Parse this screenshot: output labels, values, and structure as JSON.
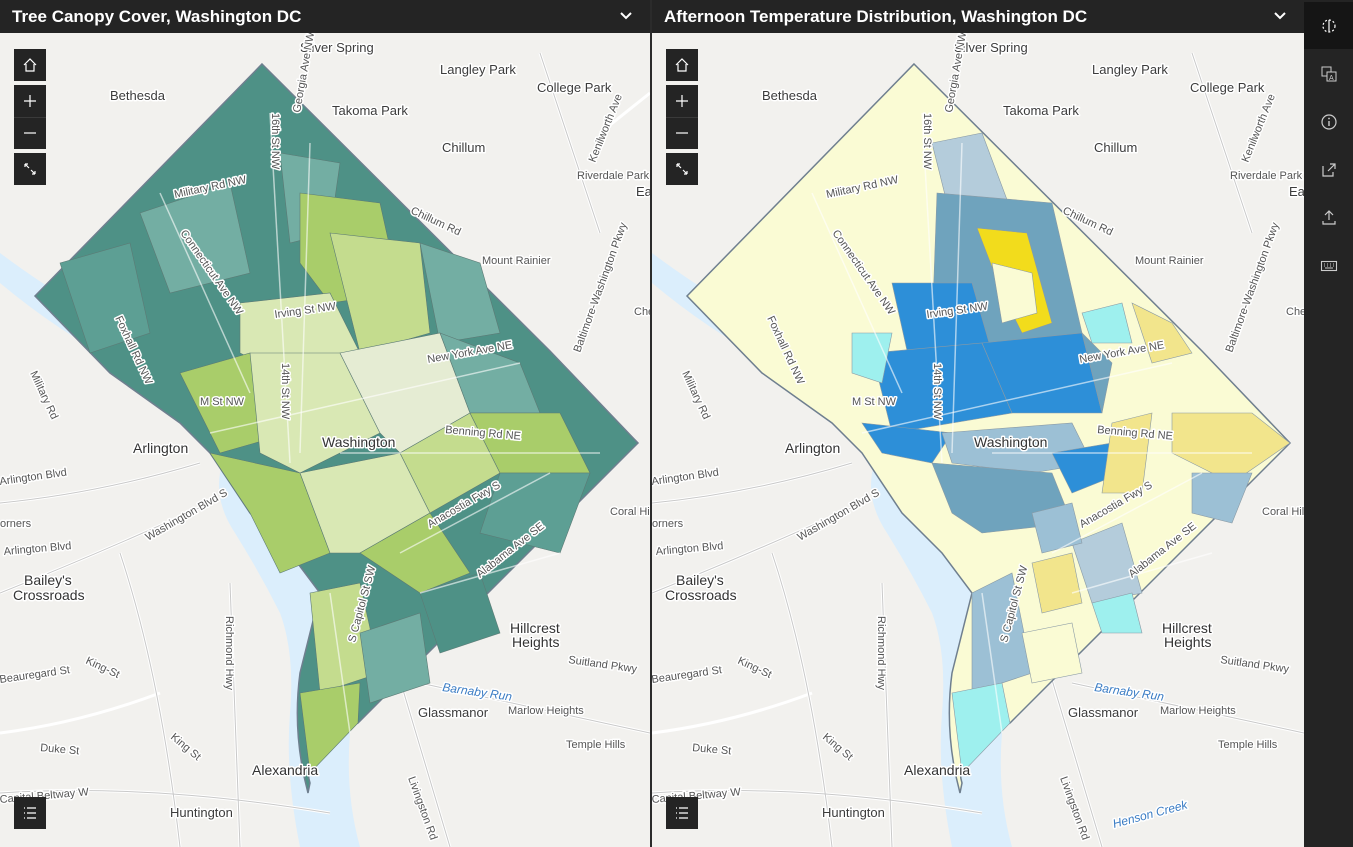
{
  "left_panel": {
    "title": "Tree Canopy Cover, Washington DC",
    "labels": {
      "silver_spring": "Silver Spring",
      "langley_park": "Langley Park",
      "bethesda": "Bethesda",
      "college_park": "College Park",
      "takoma_park": "Takoma Park",
      "chillum": "Chillum",
      "riverdale_park": "Riverdale Park",
      "chillum_rd": "Chillum Rd",
      "mount_rainier": "Mount Rainier",
      "military_rd_nw": "Military Rd NW",
      "connecticut_ave_nw": "Connecticut Ave NW",
      "foxhall_rd_nw": "Foxhall Rd NW",
      "sixteenth_st_nw": "16th St NW",
      "georgia_ave_nw": "Georgia Ave NW",
      "irving_st_nw": "Irving St NW",
      "new_york_ave_ne": "New York Ave NE",
      "m_st_nw": "M St NW",
      "fourteenth_st_nw": "14th St NW",
      "washington": "Washington",
      "arlington": "Arlington",
      "benning_rd_ne": "Benning Rd NE",
      "anacostia_fwy_s": "Anacostia Fwy S",
      "alabama_ave_se": "Alabama Ave SE",
      "s_capitol_st_sw": "S Capitol St SW",
      "military_rd": "Military Rd",
      "arlington_blvd_top": "Arlington Blvd",
      "corners": "orners",
      "arlington_blvd": "Arlington Blvd",
      "washington_blvd": "Washington Blvd S",
      "baileys": "Bailey's",
      "crossroads": "Crossroads",
      "richmond_hwy": "Richmond Hwy",
      "beauregard_st": "Beauregard St",
      "king_st_left": "King-St",
      "king_st": "King St",
      "duke_st": "Duke St",
      "alexandria": "Alexandria",
      "capital_beltway": "Capital Beltway W",
      "huntington": "Huntington",
      "livingston_rd": "Livingston Rd",
      "hillcrest": "Hillcrest",
      "heights": "Heights",
      "suitland_pkwy": "Suitland Pkwy",
      "barnaby_run": "Barnaby Run",
      "glassmanor": "Glassmanor",
      "marlow_heights": "Marlow Heights",
      "temple_hills": "Temple Hills",
      "coral_hills": "Coral Hil",
      "kenilworth_ave": "Kenilworth Ave",
      "baltimore_washington_pkwy": "Baltimore-Washington Pkwy",
      "che": "Che",
      "ea": "Ea"
    }
  },
  "right_panel": {
    "title": "Afternoon Temperature Distribution, Washington DC",
    "labels": {
      "silver_spring": "Silver Spring",
      "langley_park": "Langley Park",
      "bethesda": "Bethesda",
      "college_park": "College Park",
      "takoma_park": "Takoma Park",
      "chillum": "Chillum",
      "riverdale_park": "Riverdale Park",
      "chillum_rd": "Chillum Rd",
      "mount_rainier": "Mount Rainier",
      "military_rd_nw": "Military Rd NW",
      "connecticut_ave_nw": "Connecticut Ave NW",
      "foxhall_rd_nw": "Foxhall Rd NW",
      "sixteenth_st_nw": "16th St NW",
      "georgia_ave_nw": "Georgia Ave NW",
      "irving_st_nw": "Irving St NW",
      "new_york_ave_ne": "New York Ave NE",
      "m_st_nw": "M St NW",
      "fourteenth_st_nw": "14th St NW",
      "washington": "Washington",
      "arlington": "Arlington",
      "benning_rd_ne": "Benning Rd NE",
      "anacostia_fwy_s": "Anacostia Fwy S",
      "alabama_ave_se": "Alabama Ave SE",
      "s_capitol_st_sw": "S Capitol St SW",
      "military_rd": "Military Rd",
      "arlington_blvd_top": "Arlington Blvd",
      "corners": "orners",
      "arlington_blvd": "Arlington Blvd",
      "washington_blvd": "Washington Blvd S",
      "baileys": "Bailey's",
      "crossroads": "Crossroads",
      "richmond_hwy": "Richmond Hwy",
      "beauregard_st": "Beauregard St",
      "king_st_left": "King-St",
      "king_st": "King St",
      "duke_st": "Duke St",
      "alexandria": "Alexandria",
      "capital_beltway": "Capital Beltway W",
      "huntington": "Huntington",
      "livingston_rd": "Livingston Rd",
      "hillcrest": "Hillcrest",
      "heights": "Heights",
      "suitland_pkwy": "Suitland Pkwy",
      "barnaby_run": "Barnaby Run",
      "glassmanor": "Glassmanor",
      "marlow_heights": "Marlow Heights",
      "temple_hills": "Temple Hills",
      "coral_hills": "Coral Hil",
      "kenilworth_ave": "Kenilworth Ave",
      "baltimore_washington_pkwy": "Baltimore-Washington Pkwy",
      "che": "Che",
      "ea": "Ea",
      "henson_creek": "Henson Creek"
    }
  },
  "map_controls": {
    "icons": [
      "home-icon",
      "zoom-in-icon",
      "zoom-out-icon",
      "fullscreen-icon",
      "legend-icon",
      "chevron-down-icon"
    ]
  },
  "sidebar": {
    "icons": [
      "swipe-icon",
      "translate-icon",
      "info-icon",
      "share-icon",
      "export-icon",
      "keyboard-icon"
    ]
  },
  "colors": {
    "canopy_high": "#4e9186",
    "canopy_mid": "#73aea3",
    "canopy_low": "#a9cd6a",
    "canopy_lowest": "#d9e8b4",
    "temp_cool": "#fafbd4",
    "temp_mid": "#b4ccdb",
    "temp_warm": "#2d8fd8",
    "temp_hot": "#f2dc1c",
    "temp_cyan": "#9ef0ee",
    "basemap": "#f2f1ee",
    "water": "#dbeefc",
    "chrome": "#242424"
  }
}
